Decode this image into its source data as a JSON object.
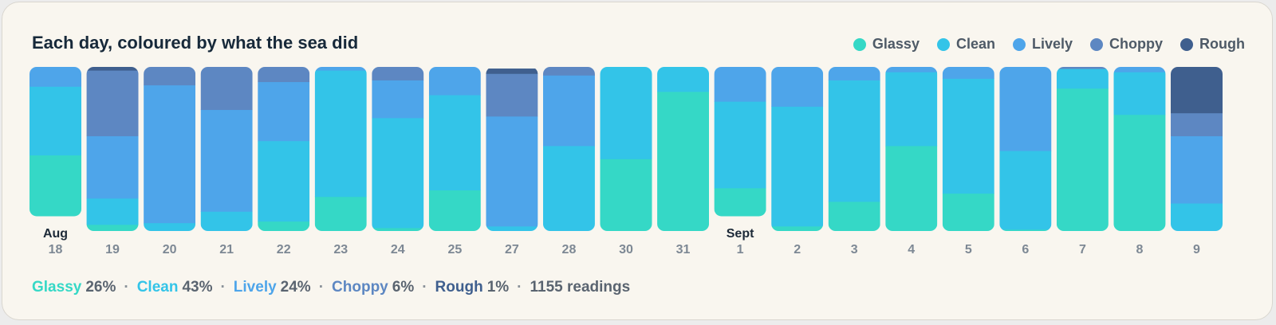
{
  "title": "Each day, coloured by what the sea did",
  "colors": {
    "Glassy": "#35d8c6",
    "Clean": "#33c4e8",
    "Lively": "#4ea5ea",
    "Choppy": "#5d87c2",
    "Rough": "#3f5f8e"
  },
  "legend": [
    "Glassy",
    "Clean",
    "Lively",
    "Choppy",
    "Rough"
  ],
  "summary": {
    "items": [
      {
        "name": "Glassy",
        "pct": "26%"
      },
      {
        "name": "Clean",
        "pct": "43%"
      },
      {
        "name": "Lively",
        "pct": "24%"
      },
      {
        "name": "Choppy",
        "pct": "6%"
      },
      {
        "name": "Rough",
        "pct": "1%"
      }
    ],
    "readings": "1155 readings"
  },
  "chart_data": {
    "type": "bar",
    "stacked": true,
    "normalized": true,
    "categories": [
      "18",
      "19",
      "20",
      "21",
      "22",
      "23",
      "24",
      "25",
      "27",
      "28",
      "30",
      "31",
      "1",
      "2",
      "3",
      "4",
      "5",
      "6",
      "7",
      "8",
      "9"
    ],
    "month_labels": [
      {
        "index": 0,
        "label": "Aug"
      },
      {
        "index": 12,
        "label": "Sept"
      }
    ],
    "series": [
      {
        "name": "Glassy",
        "values": [
          0.41,
          0.04,
          0.0,
          0.0,
          0.06,
          0.21,
          0.02,
          0.25,
          0.0,
          0.0,
          0.44,
          0.85,
          0.19,
          0.03,
          0.18,
          0.52,
          0.23,
          0.01,
          0.87,
          0.71,
          0.0
        ]
      },
      {
        "name": "Clean",
        "values": [
          0.46,
          0.16,
          0.05,
          0.12,
          0.49,
          0.77,
          0.67,
          0.58,
          0.03,
          0.52,
          0.56,
          0.15,
          0.58,
          0.73,
          0.74,
          0.45,
          0.7,
          0.48,
          0.12,
          0.26,
          0.17
        ]
      },
      {
        "name": "Lively",
        "values": [
          0.13,
          0.38,
          0.84,
          0.62,
          0.36,
          0.02,
          0.23,
          0.17,
          0.67,
          0.43,
          0.0,
          0.0,
          0.23,
          0.24,
          0.08,
          0.03,
          0.07,
          0.51,
          0.0,
          0.03,
          0.41
        ]
      },
      {
        "name": "Choppy",
        "values": [
          0.0,
          0.4,
          0.11,
          0.26,
          0.09,
          0.0,
          0.08,
          0.0,
          0.26,
          0.05,
          0.0,
          0.0,
          0.0,
          0.0,
          0.0,
          0.0,
          0.0,
          0.0,
          0.01,
          0.0,
          0.14
        ]
      },
      {
        "name": "Rough",
        "values": [
          0.0,
          0.02,
          0.0,
          0.0,
          0.0,
          0.0,
          0.0,
          0.0,
          0.03,
          0.0,
          0.0,
          0.0,
          0.0,
          0.0,
          0.0,
          0.0,
          0.0,
          0.0,
          0.0,
          0.0,
          0.28
        ]
      }
    ],
    "bar_coverage": [
      0.91,
      1,
      1,
      1,
      1,
      1,
      1,
      1,
      1,
      1,
      1,
      1,
      0.91,
      1,
      1,
      1,
      1,
      1,
      1,
      1,
      1
    ],
    "ylim": [
      0,
      1
    ],
    "grid": false,
    "legend_position": "top-right"
  }
}
